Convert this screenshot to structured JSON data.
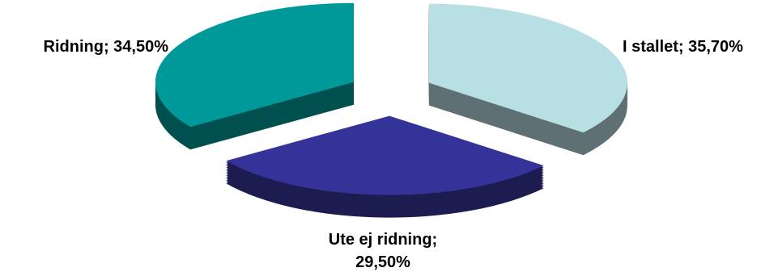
{
  "chart_data": {
    "type": "pie",
    "style": "3d-exploded",
    "title": "",
    "legend": "none",
    "data_labels": "category-and-percent",
    "slices": [
      {
        "name": "I stallet",
        "value": 35.7,
        "label_line1": "I stallet; 35,70%",
        "label_line2": "",
        "color": "#B8E0E4",
        "side_color": "#5F7074"
      },
      {
        "name": "Ute ej ridning",
        "value": 29.5,
        "label_line1": "Ute ej ridning;",
        "label_line2": "29,50%",
        "color": "#333399",
        "side_color": "#1C1C50"
      },
      {
        "name": "Ridning",
        "value": 34.5,
        "label_line1": "Ridning; 34,50%",
        "label_line2": "",
        "color": "#009999",
        "side_color": "#00504F"
      }
    ]
  }
}
